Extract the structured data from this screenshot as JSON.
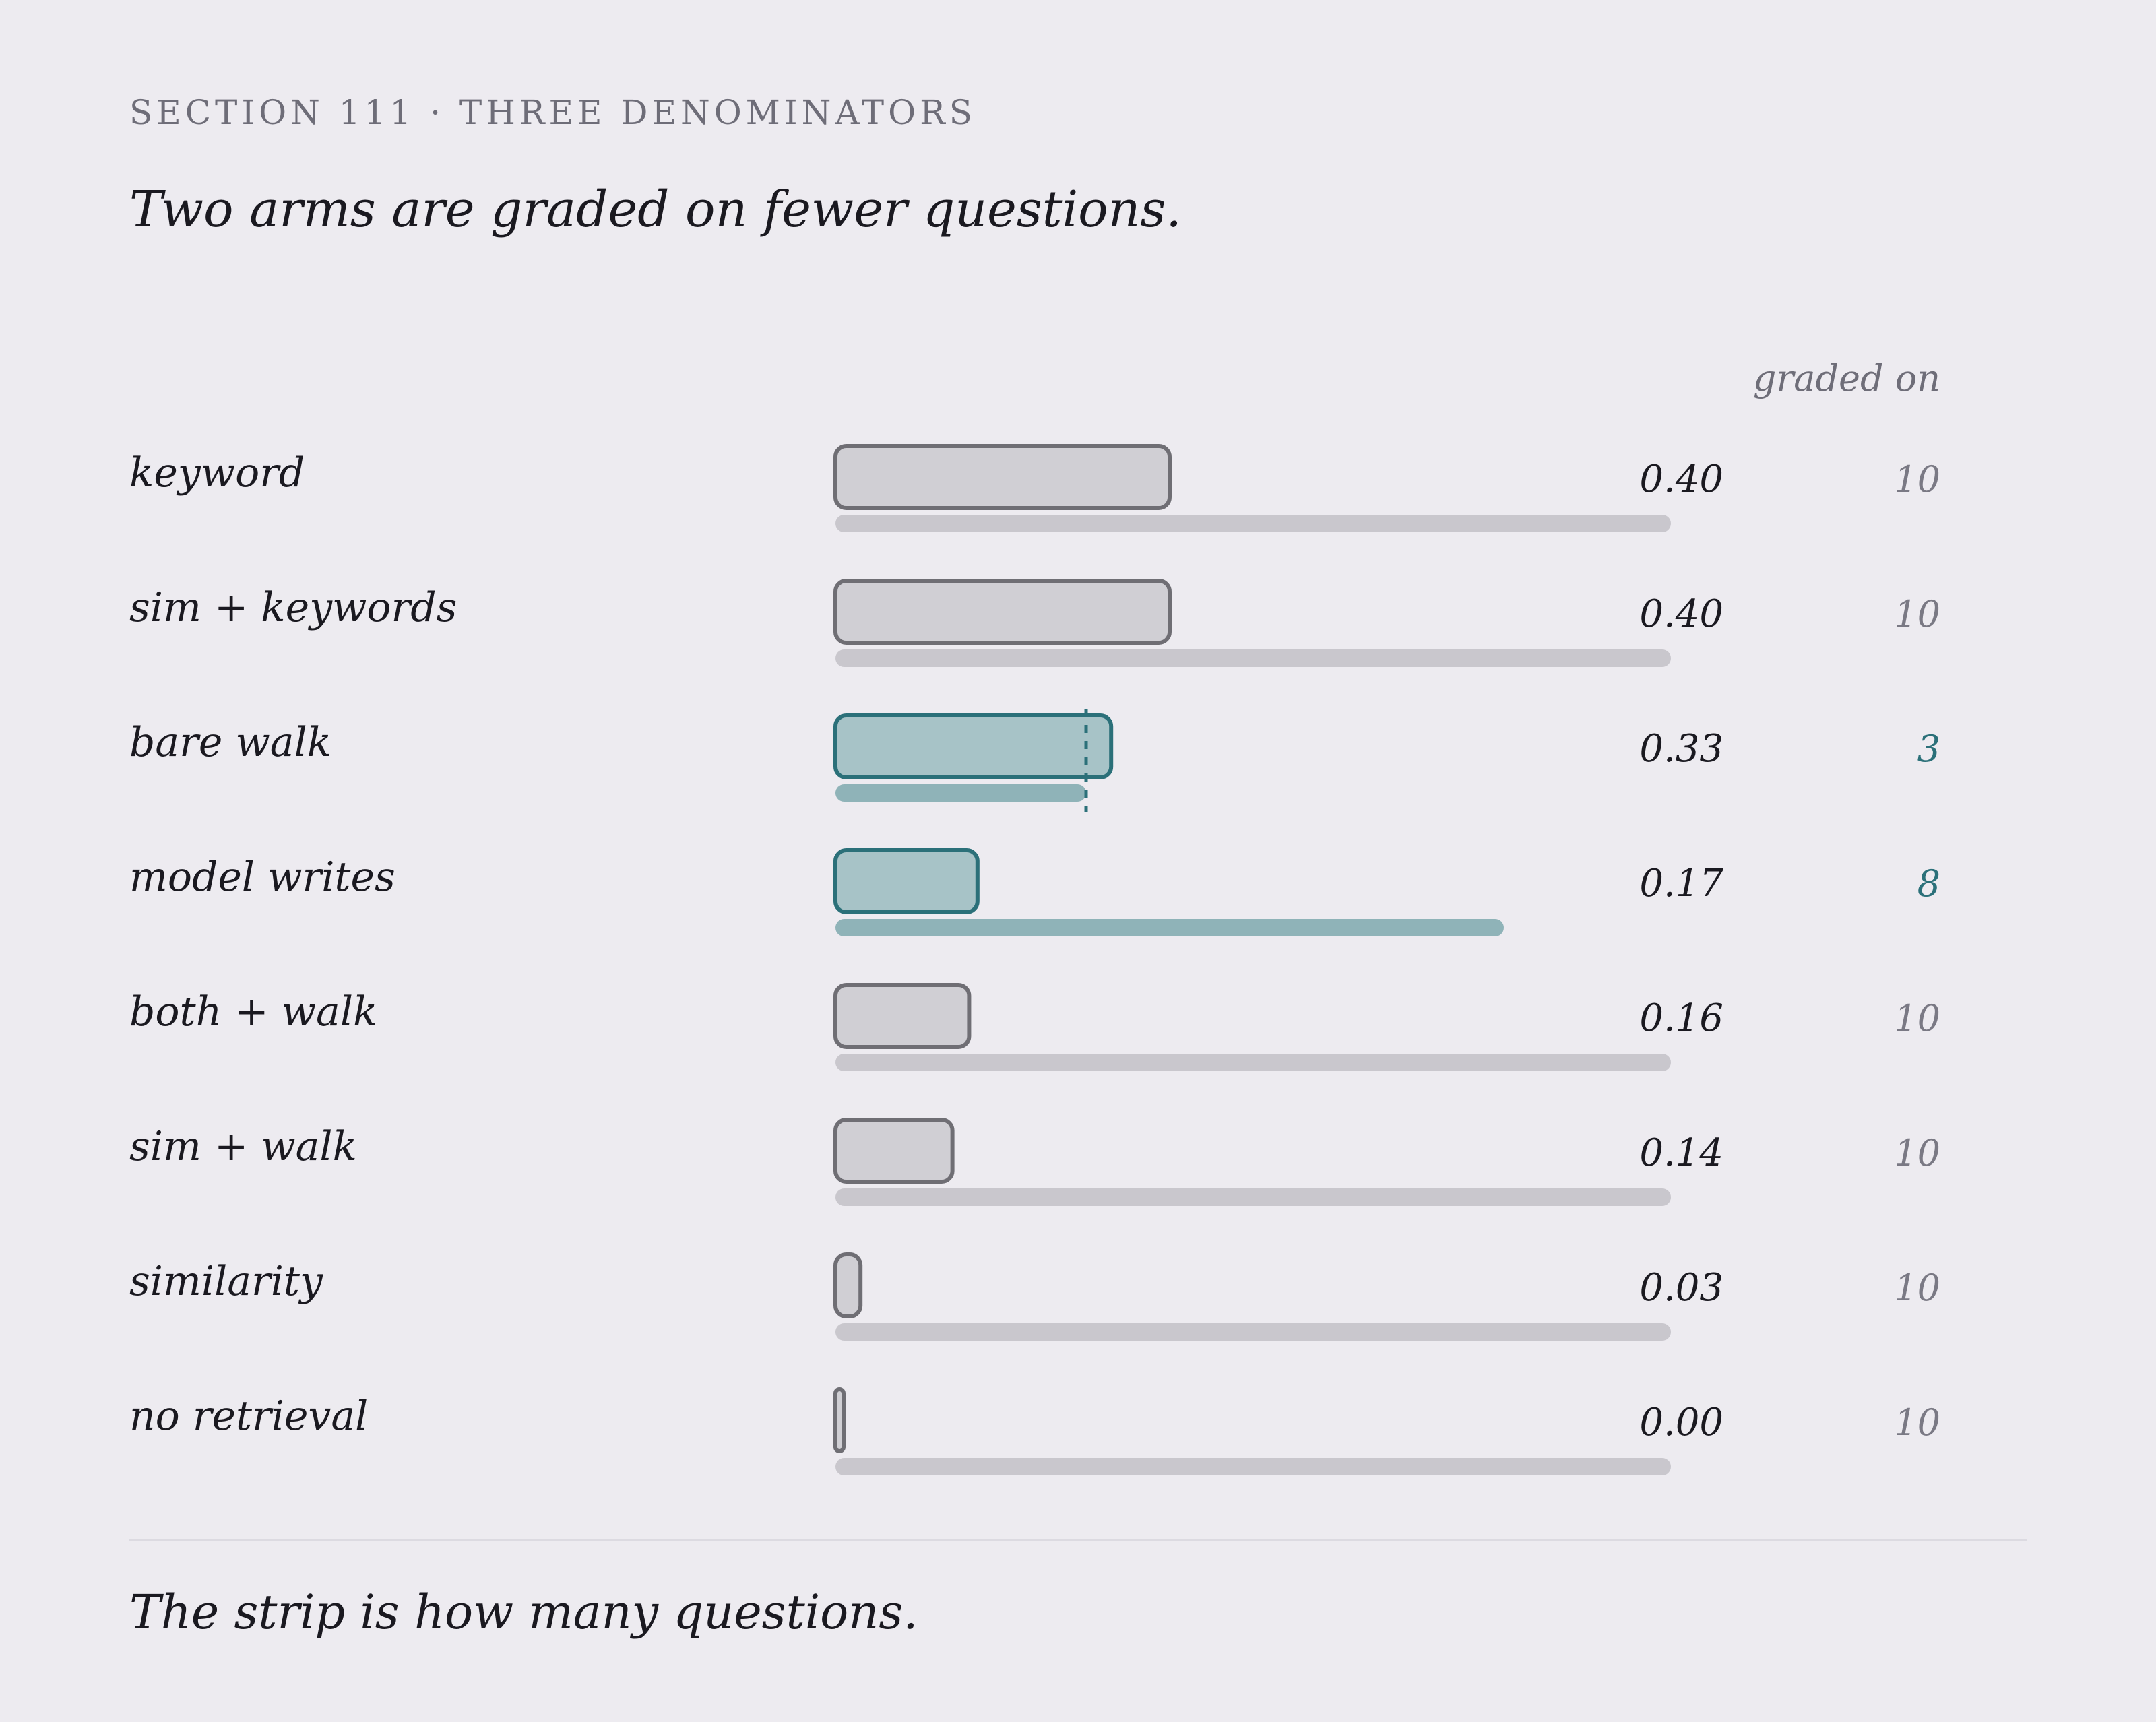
{
  "eyebrow": "SECTION 111 · THREE DENOMINATORS",
  "headline": "Two arms are graded on fewer questions.",
  "column_header": "graded on",
  "footnote": "The strip is how many questions.",
  "colors": {
    "background": "#edebf0",
    "neutral_fill": "#d0cfd4",
    "neutral_stroke": "#6f6e74",
    "neutral_strip": "#c9c7cd",
    "highlight_fill": "#a7c3c7",
    "highlight_stroke": "#2b7079",
    "highlight_strip": "#8fb3b8",
    "text": "#1a1920",
    "muted": "#7a7984"
  },
  "chart_data": {
    "type": "bar",
    "orientation": "horizontal",
    "xlim": [
      0,
      1
    ],
    "max_questions": 10,
    "grid": false,
    "categories": [
      "keyword",
      "sim + keywords",
      "bare walk",
      "model writes",
      "both + walk",
      "sim + walk",
      "similarity",
      "no retrieval"
    ],
    "values": [
      0.4,
      0.4,
      0.33,
      0.17,
      0.16,
      0.14,
      0.03,
      0.0
    ],
    "value_labels": [
      "0.40",
      "0.40",
      "0.33",
      "0.17",
      "0.16",
      "0.14",
      "0.03",
      "0.00"
    ],
    "graded_on": [
      10,
      10,
      3,
      8,
      10,
      10,
      10,
      10
    ],
    "highlighted": [
      "bare walk",
      "model writes"
    ]
  }
}
